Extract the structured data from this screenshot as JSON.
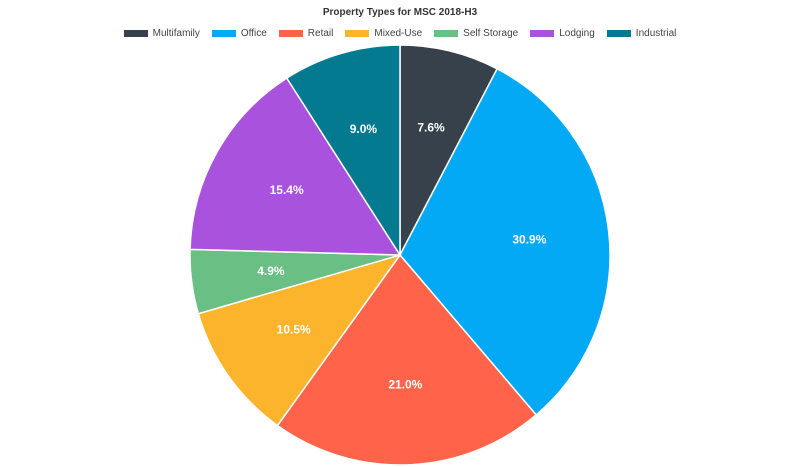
{
  "chart_data": {
    "type": "pie",
    "title": "Property Types for MSC 2018-H3",
    "legend_position": "top",
    "slices": [
      {
        "label": "Multifamily",
        "value": 7.6,
        "display": "7.6%",
        "color": "#37414c"
      },
      {
        "label": "Office",
        "value": 30.9,
        "display": "30.9%",
        "color": "#03a9f4"
      },
      {
        "label": "Retail",
        "value": 21.0,
        "display": "21.0%",
        "color": "#ff634a"
      },
      {
        "label": "Mixed-Use",
        "value": 10.5,
        "display": "10.5%",
        "color": "#fbb42b"
      },
      {
        "label": "Self Storage",
        "value": 4.9,
        "display": "4.9%",
        "color": "#6abf85"
      },
      {
        "label": "Lodging",
        "value": 15.4,
        "display": "15.4%",
        "color": "#a852de"
      },
      {
        "label": "Industrial",
        "value": 9.0,
        "display": "9.0%",
        "color": "#037a8f"
      }
    ]
  }
}
